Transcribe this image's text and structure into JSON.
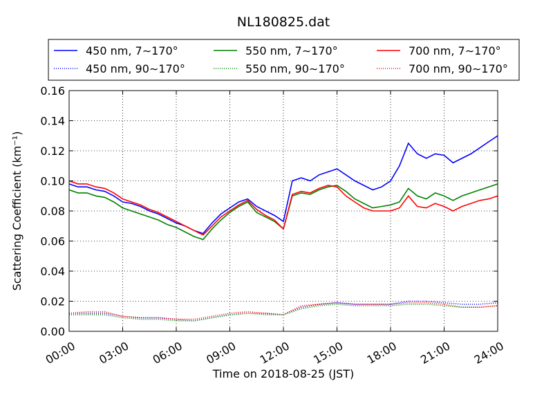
{
  "chart_data": {
    "type": "line",
    "title": "NL180825.dat",
    "xlabel": "Time on 2018-08-25 (JST)",
    "ylabel": "Scattering Coefficient (km⁻¹)",
    "xlim": [
      0,
      24
    ],
    "ylim": [
      0,
      0.16
    ],
    "x_unit": "hours",
    "x_ticks": [
      0,
      3,
      6,
      9,
      12,
      15,
      18,
      21,
      24
    ],
    "x_tick_labels": [
      "00:00",
      "03:00",
      "06:00",
      "09:00",
      "12:00",
      "15:00",
      "18:00",
      "21:00",
      "24:00"
    ],
    "y_ticks": [
      0,
      0.02,
      0.04,
      0.06,
      0.08,
      0.1,
      0.12,
      0.14,
      0.16
    ],
    "y_tick_labels": [
      "0.00",
      "0.02",
      "0.04",
      "0.06",
      "0.08",
      "0.10",
      "0.12",
      "0.14",
      "0.16"
    ],
    "grid": true,
    "legend_position": "top",
    "series": [
      {
        "name": "450 nm, 7∼170°",
        "color": "#0000ff",
        "style": "solid",
        "x": [
          0,
          0.5,
          1,
          1.5,
          2,
          2.5,
          3,
          3.5,
          4,
          4.5,
          5,
          5.5,
          6,
          6.5,
          7,
          7.5,
          8,
          8.5,
          9,
          9.5,
          10,
          10.5,
          11,
          11.5,
          12,
          12.5,
          13,
          13.5,
          14,
          14.5,
          15,
          15.5,
          16,
          16.5,
          17,
          17.5,
          18,
          18.5,
          19,
          19.5,
          20,
          20.5,
          21,
          21.5,
          22,
          22.5,
          23,
          23.5,
          24
        ],
        "y": [
          0.098,
          0.096,
          0.096,
          0.094,
          0.093,
          0.09,
          0.086,
          0.085,
          0.083,
          0.08,
          0.078,
          0.075,
          0.072,
          0.07,
          0.067,
          0.065,
          0.072,
          0.078,
          0.082,
          0.086,
          0.088,
          0.083,
          0.08,
          0.077,
          0.073,
          0.1,
          0.102,
          0.1,
          0.104,
          0.106,
          0.108,
          0.104,
          0.1,
          0.097,
          0.094,
          0.096,
          0.1,
          0.11,
          0.125,
          0.118,
          0.115,
          0.118,
          0.117,
          0.112,
          0.115,
          0.118,
          0.122,
          0.126,
          0.13
        ]
      },
      {
        "name": "550 nm, 7∼170°",
        "color": "#008000",
        "style": "solid",
        "x": [
          0,
          0.5,
          1,
          1.5,
          2,
          2.5,
          3,
          3.5,
          4,
          4.5,
          5,
          5.5,
          6,
          6.5,
          7,
          7.5,
          8,
          8.5,
          9,
          9.5,
          10,
          10.5,
          11,
          11.5,
          12,
          12.5,
          13,
          13.5,
          14,
          14.5,
          15,
          15.5,
          16,
          16.5,
          17,
          17.5,
          18,
          18.5,
          19,
          19.5,
          20,
          20.5,
          21,
          21.5,
          22,
          22.5,
          23,
          23.5,
          24
        ],
        "y": [
          0.094,
          0.092,
          0.092,
          0.09,
          0.089,
          0.086,
          0.082,
          0.08,
          0.078,
          0.076,
          0.074,
          0.071,
          0.069,
          0.066,
          0.063,
          0.061,
          0.068,
          0.074,
          0.079,
          0.083,
          0.086,
          0.079,
          0.076,
          0.073,
          0.068,
          0.09,
          0.092,
          0.091,
          0.094,
          0.096,
          0.097,
          0.093,
          0.088,
          0.085,
          0.082,
          0.083,
          0.084,
          0.086,
          0.095,
          0.09,
          0.088,
          0.092,
          0.09,
          0.087,
          0.09,
          0.092,
          0.094,
          0.096,
          0.098
        ]
      },
      {
        "name": "700 nm, 7∼170°",
        "color": "#ff0000",
        "style": "solid",
        "x": [
          0,
          0.5,
          1,
          1.5,
          2,
          2.5,
          3,
          3.5,
          4,
          4.5,
          5,
          5.5,
          6,
          6.5,
          7,
          7.5,
          8,
          8.5,
          9,
          9.5,
          10,
          10.5,
          11,
          11.5,
          12,
          12.5,
          13,
          13.5,
          14,
          14.5,
          15,
          15.5,
          16,
          16.5,
          17,
          17.5,
          18,
          18.5,
          19,
          19.5,
          20,
          20.5,
          21,
          21.5,
          22,
          22.5,
          23,
          23.5,
          24
        ],
        "y": [
          0.1,
          0.098,
          0.098,
          0.096,
          0.095,
          0.092,
          0.088,
          0.086,
          0.084,
          0.081,
          0.079,
          0.076,
          0.073,
          0.07,
          0.067,
          0.064,
          0.07,
          0.076,
          0.08,
          0.084,
          0.087,
          0.081,
          0.077,
          0.074,
          0.068,
          0.091,
          0.093,
          0.092,
          0.095,
          0.097,
          0.096,
          0.09,
          0.086,
          0.082,
          0.08,
          0.08,
          0.08,
          0.082,
          0.09,
          0.083,
          0.082,
          0.085,
          0.083,
          0.08,
          0.083,
          0.085,
          0.087,
          0.088,
          0.09
        ]
      },
      {
        "name": "450 nm, 90∼170°",
        "color": "#0000ff",
        "style": "dotted",
        "x": [
          0,
          1,
          2,
          3,
          4,
          5,
          6,
          7,
          8,
          9,
          10,
          11,
          12,
          13,
          14,
          15,
          16,
          17,
          18,
          19,
          20,
          21,
          22,
          23,
          24
        ],
        "y": [
          0.012,
          0.012,
          0.012,
          0.01,
          0.009,
          0.009,
          0.008,
          0.007,
          0.009,
          0.011,
          0.012,
          0.012,
          0.011,
          0.016,
          0.018,
          0.019,
          0.018,
          0.018,
          0.018,
          0.02,
          0.02,
          0.019,
          0.018,
          0.018,
          0.019
        ]
      },
      {
        "name": "550 nm, 90∼170°",
        "color": "#008000",
        "style": "dotted",
        "x": [
          0,
          1,
          2,
          3,
          4,
          5,
          6,
          7,
          8,
          9,
          10,
          11,
          12,
          13,
          14,
          15,
          16,
          17,
          18,
          19,
          20,
          21,
          22,
          23,
          24
        ],
        "y": [
          0.011,
          0.011,
          0.011,
          0.009,
          0.008,
          0.008,
          0.007,
          0.007,
          0.009,
          0.011,
          0.012,
          0.011,
          0.011,
          0.015,
          0.017,
          0.018,
          0.017,
          0.017,
          0.017,
          0.018,
          0.018,
          0.017,
          0.016,
          0.016,
          0.017
        ]
      },
      {
        "name": "700 nm, 90∼170°",
        "color": "#ff0000",
        "style": "dotted",
        "x": [
          0,
          1,
          2,
          3,
          4,
          5,
          6,
          7,
          8,
          9,
          10,
          11,
          12,
          13,
          14,
          15,
          16,
          17,
          18,
          19,
          20,
          21,
          22,
          23,
          24
        ],
        "y": [
          0.012,
          0.013,
          0.013,
          0.01,
          0.009,
          0.009,
          0.008,
          0.008,
          0.01,
          0.012,
          0.013,
          0.012,
          0.011,
          0.017,
          0.018,
          0.019,
          0.018,
          0.018,
          0.018,
          0.019,
          0.019,
          0.018,
          0.016,
          0.016,
          0.017
        ]
      }
    ]
  }
}
